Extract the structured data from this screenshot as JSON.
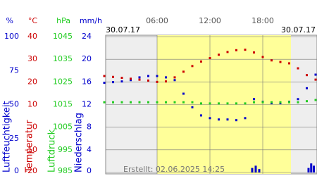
{
  "chart_data": {
    "type": "line",
    "xlim": [
      0,
      24
    ],
    "xticks": [
      {
        "value": 6,
        "label": "06:00"
      },
      {
        "value": 12,
        "label": "12:00"
      },
      {
        "value": 18,
        "label": "18:00"
      }
    ],
    "date_start": "30.07.17",
    "date_end": "30.07.17",
    "daylight": [
      6,
      21.2
    ],
    "footer": "Erstellt: 02.06.2025 14:25",
    "x": [
      0,
      1,
      2,
      3,
      4,
      5,
      6,
      7,
      8,
      9,
      10,
      11,
      12,
      13,
      14,
      15,
      16,
      17,
      18,
      19,
      20,
      21,
      22,
      23,
      24
    ],
    "axes": [
      {
        "unit": "%",
        "title": "Luftfeuchtigkeit",
        "color": "#0000cc",
        "ylim": [
          0,
          100
        ],
        "yticks": [
          100,
          75,
          50,
          25,
          0
        ],
        "type": "line",
        "values": [
          66,
          66.5,
          67,
          68,
          70,
          71,
          71,
          70,
          68,
          58,
          48,
          42,
          40,
          39,
          39,
          38.5,
          40,
          54,
          52,
          51,
          51,
          52,
          54,
          62,
          72
        ]
      },
      {
        "unit": "°C",
        "title": "Temperatur",
        "color": "#cc0000",
        "ylim": [
          -20,
          40
        ],
        "yticks": [
          40,
          30,
          20,
          10,
          0,
          -10,
          -20
        ],
        "type": "line",
        "values": [
          22.6,
          22.2,
          21.8,
          21.4,
          21,
          20.6,
          20,
          20.2,
          22,
          24.5,
          27,
          29,
          30.5,
          32,
          33.2,
          34,
          34.2,
          33,
          31,
          29.5,
          28.8,
          28.2,
          26,
          23,
          21
        ]
      },
      {
        "unit": "hPa",
        "title": "Luftdruck",
        "color": "#22cc22",
        "ylim": [
          985,
          1045
        ],
        "yticks": [
          1045,
          1035,
          1025,
          1015,
          1005,
          995,
          985
        ],
        "type": "line",
        "values": [
          1016,
          1016,
          1016,
          1016,
          1016,
          1016,
          1016,
          1016,
          1016,
          1016,
          1016,
          1015.5,
          1015.5,
          1015.5,
          1015.5,
          1015.5,
          1015.5,
          1016,
          1016,
          1016,
          1016,
          1016,
          1016,
          1016.5,
          1017
        ]
      },
      {
        "unit": "mm/h",
        "title": "Niederschlag",
        "color": "#0000cc",
        "ylim": [
          0,
          24
        ],
        "yticks": [
          24,
          20,
          16,
          12,
          8,
          4,
          0
        ],
        "type": "bar",
        "x": [
          16.8,
          17.2,
          17.6,
          23.2,
          23.5,
          23.8
        ],
        "values": [
          0.8,
          1.2,
          0.6,
          0.8,
          1.6,
          1.2
        ]
      }
    ]
  }
}
